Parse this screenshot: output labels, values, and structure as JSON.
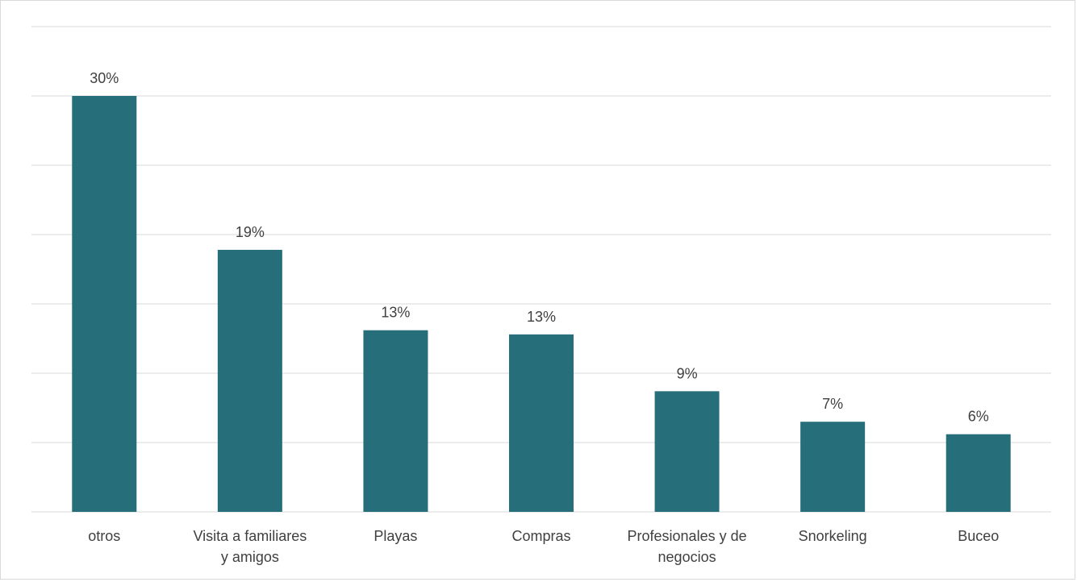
{
  "chart_data": {
    "type": "bar",
    "categories": [
      [
        "otros"
      ],
      [
        "Visita a familiares",
        "y amigos"
      ],
      [
        "Playas"
      ],
      [
        "Compras"
      ],
      [
        "Profesionales y de",
        "negocios"
      ],
      [
        "Snorkeling"
      ],
      [
        "Buceo"
      ]
    ],
    "values": [
      30,
      18.9,
      13.1,
      12.8,
      8.7,
      6.5,
      5.6
    ],
    "data_labels": [
      "30%",
      "19%",
      "13%",
      "13%",
      "9%",
      "7%",
      "6%"
    ],
    "value_unit": "%",
    "ylim": [
      0,
      36
    ],
    "ytick_step": 5,
    "grid": true,
    "legend": "none",
    "colors": {
      "bar": "#276E7B"
    }
  }
}
